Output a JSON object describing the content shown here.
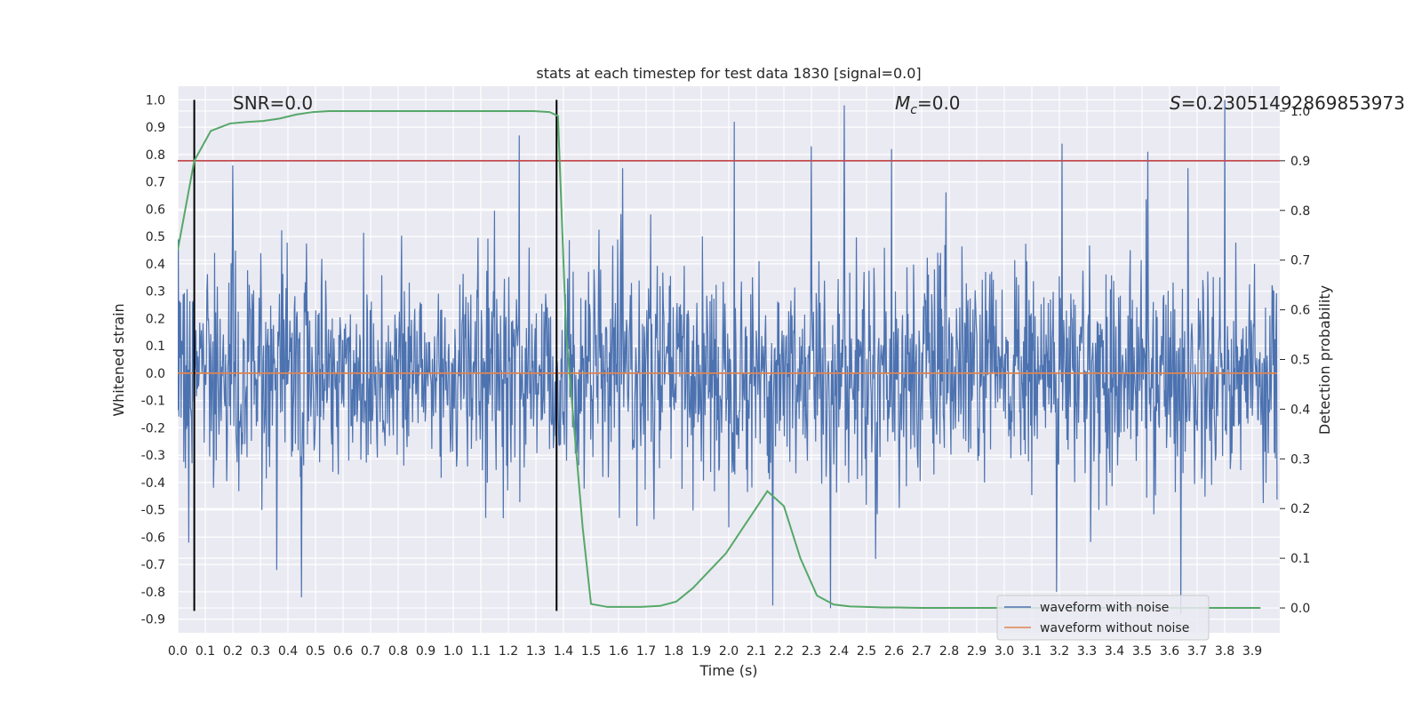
{
  "chart_data": {
    "type": "line",
    "title": "stats at each timestep for test data 1830 [signal=0.0]",
    "xlabel": "Time (s)",
    "ylabel_left": "Whitened strain",
    "ylabel_right": "Detection probability",
    "xlim": [
      0.0,
      4.0
    ],
    "ylim_left": [
      -0.95,
      1.05
    ],
    "ylim_right": [
      -0.05,
      1.05
    ],
    "x_ticks": [
      "0.0",
      "0.1",
      "0.2",
      "0.3",
      "0.4",
      "0.5",
      "0.6",
      "0.7",
      "0.8",
      "0.9",
      "1.0",
      "1.1",
      "1.2",
      "1.3",
      "1.4",
      "1.5",
      "1.6",
      "1.7",
      "1.8",
      "1.9",
      "2.0",
      "2.1",
      "2.2",
      "2.3",
      "2.4",
      "2.5",
      "2.6",
      "2.7",
      "2.8",
      "2.9",
      "3.0",
      "3.1",
      "3.2",
      "3.3",
      "3.4",
      "3.5",
      "3.6",
      "3.7",
      "3.8",
      "3.9"
    ],
    "y_left_ticks": [
      "1.0",
      "0.9",
      "0.8",
      "0.7",
      "0.6",
      "0.5",
      "0.4",
      "0.3",
      "0.2",
      "0.1",
      "0.0",
      "-0.1",
      "-0.2",
      "-0.3",
      "-0.4",
      "-0.5",
      "-0.6",
      "-0.7",
      "-0.8",
      "-0.9"
    ],
    "y_right_ticks": [
      "1.0",
      "0.9",
      "0.8",
      "0.7",
      "0.6",
      "0.5",
      "0.4",
      "0.3",
      "0.2",
      "0.1",
      "0.0"
    ],
    "annotations": {
      "snr": "SNR=0.0",
      "mc_symbol": "M",
      "mc_sub": "c",
      "mc_value": "=0.0",
      "s_symbol": "S",
      "s_value": "=0.23051492869853973"
    },
    "legend": [
      "waveform with noise",
      "waveform without noise"
    ],
    "colors": {
      "noise": "#4c72b0",
      "clean": "#dd8452",
      "probability": "#55a868",
      "threshold": "#c44e52",
      "markers": "#000000",
      "background": "#eaeaf2",
      "grid": "#ffffff"
    },
    "threshold_probability": 0.9,
    "vertical_markers_time": [
      0.06,
      1.375
    ],
    "vertical_marker_y_range": [
      -0.87,
      1.0
    ],
    "noise_series": {
      "description_seed": 1830,
      "num_points": 2000,
      "typical_range": [
        -0.6,
        0.6
      ],
      "spikes": [
        {
          "t": 1.24,
          "v": 0.87
        },
        {
          "t": 2.02,
          "v": 0.92
        },
        {
          "t": 2.42,
          "v": 0.98
        },
        {
          "t": 3.8,
          "v": 1.0
        },
        {
          "t": 2.3,
          "v": 0.83
        },
        {
          "t": 2.59,
          "v": 0.82
        },
        {
          "t": 3.21,
          "v": 0.84
        },
        {
          "t": 3.52,
          "v": 0.81
        },
        {
          "t": 0.2,
          "v": 0.76
        },
        {
          "t": 0.45,
          "v": -0.82
        },
        {
          "t": 2.37,
          "v": -0.86
        },
        {
          "t": 3.64,
          "v": -0.88
        },
        {
          "t": 2.16,
          "v": -0.85
        },
        {
          "t": 3.19,
          "v": -0.8
        },
        {
          "t": 0.04,
          "v": -0.62
        },
        {
          "t": 0.36,
          "v": -0.72
        }
      ]
    },
    "clean_series": {
      "x": [
        0.0,
        3.99
      ],
      "y": [
        0.0,
        0.0
      ]
    },
    "probability_series": {
      "x": [
        0.0,
        0.06,
        0.12,
        0.19,
        0.25,
        0.31,
        0.37,
        0.43,
        0.49,
        0.55,
        0.62,
        0.68,
        0.74,
        0.8,
        0.86,
        0.92,
        0.98,
        1.04,
        1.1,
        1.16,
        1.22,
        1.29,
        1.35,
        1.38,
        1.41,
        1.47,
        1.5,
        1.56,
        1.62,
        1.68,
        1.75,
        1.81,
        1.87,
        1.93,
        1.99,
        2.05,
        2.11,
        2.14,
        2.17,
        2.2,
        2.26,
        2.32,
        2.38,
        2.44,
        2.5,
        2.56,
        2.62,
        2.7,
        3.0,
        3.3,
        3.6,
        3.93
      ],
      "y": [
        0.72,
        0.9,
        0.96,
        0.975,
        0.978,
        0.98,
        0.985,
        0.993,
        0.998,
        1.0,
        1.0,
        1.0,
        1.0,
        1.0,
        1.0,
        1.0,
        1.0,
        1.0,
        1.0,
        1.0,
        1.0,
        1.0,
        0.998,
        0.99,
        0.55,
        0.16,
        0.008,
        0.002,
        0.002,
        0.002,
        0.004,
        0.013,
        0.04,
        0.075,
        0.11,
        0.16,
        0.21,
        0.235,
        0.22,
        0.205,
        0.1,
        0.025,
        0.007,
        0.003,
        0.002,
        0.001,
        0.001,
        0.0,
        0.0,
        0.0,
        0.0,
        0.0
      ]
    }
  }
}
